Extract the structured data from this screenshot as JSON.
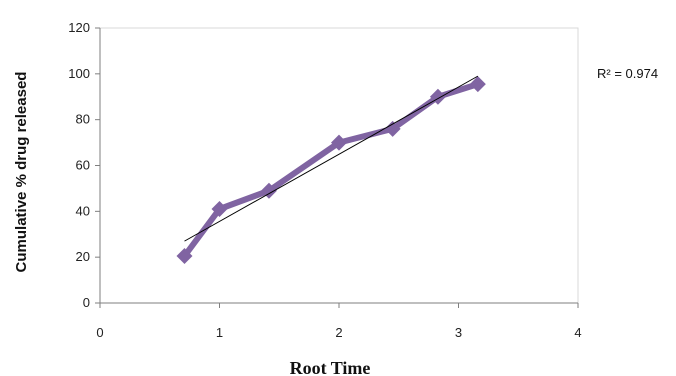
{
  "chart_data": {
    "type": "line",
    "title": "",
    "xlabel": "Root Time",
    "ylabel": "Cumulative % drug released",
    "xlim": [
      0,
      4
    ],
    "ylim": [
      0,
      120
    ],
    "x_ticks": [
      "0",
      "1",
      "2",
      "3",
      "4"
    ],
    "y_ticks": [
      "0",
      "20",
      "40",
      "60",
      "80",
      "100",
      "120"
    ],
    "grid": false,
    "legend": "none",
    "series": [
      {
        "x": [
          0.707,
          1.0,
          1.414,
          2.0,
          2.449,
          2.828,
          3.162
        ],
        "values": [
          20.5,
          41,
          49,
          70,
          76,
          90,
          95.5
        ],
        "color": "#8064A2",
        "marker": "diamond"
      }
    ],
    "trendline": {
      "type": "linear",
      "from": [
        0.707,
        27
      ],
      "to": [
        3.162,
        99
      ],
      "color": "#000000"
    },
    "annotation": "R² = 0.974",
    "plot_background": "#ffffff"
  }
}
